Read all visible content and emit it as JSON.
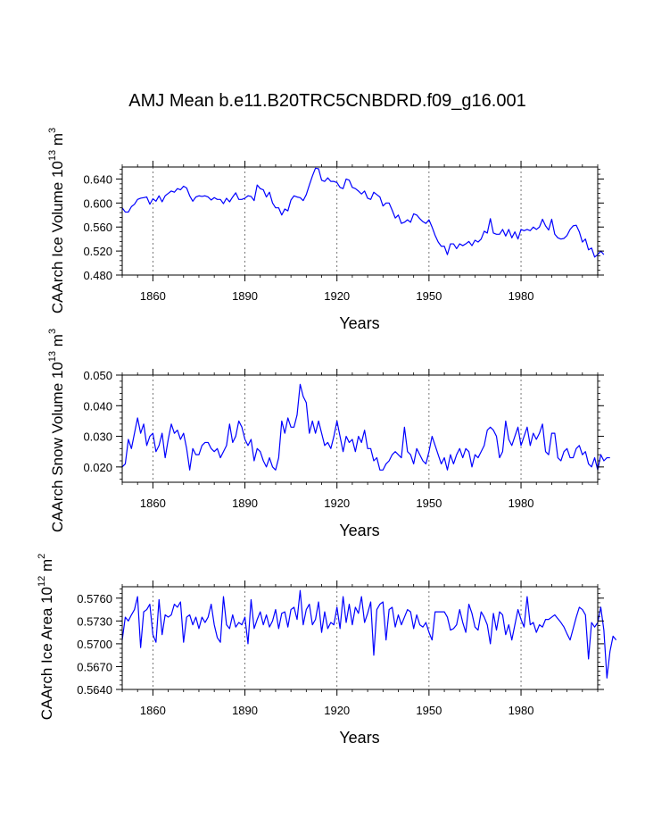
{
  "figure": {
    "title": "AMJ Mean b.e11.B20TRC5CNBDRD.f09_g16.001",
    "line_color": "#0000ff",
    "axis_color": "#000000",
    "grid_color": "#555555"
  },
  "chart_data": [
    {
      "type": "line",
      "name": "ice-volume",
      "title": "",
      "xlabel": "Years",
      "ylabel": {
        "prefix": "CAArch Ice Volume 10",
        "exp": "13",
        "mid": " m",
        "exp2": "3"
      },
      "xlim": [
        1850,
        2005
      ],
      "ylim": [
        0.48,
        0.66
      ],
      "xticks": [
        1860,
        1890,
        1920,
        1950,
        1980
      ],
      "xtick_labels": [
        "1860",
        "1890",
        "1920",
        "1950",
        "1980"
      ],
      "yticks": [
        0.48,
        0.52,
        0.56,
        0.6,
        0.64
      ],
      "ytick_labels": [
        "0.480",
        "0.520",
        "0.560",
        "0.600",
        "0.640"
      ],
      "x_start": 1850,
      "values": [
        0.592,
        0.585,
        0.585,
        0.594,
        0.598,
        0.606,
        0.608,
        0.609,
        0.61,
        0.598,
        0.607,
        0.603,
        0.612,
        0.602,
        0.612,
        0.616,
        0.62,
        0.618,
        0.624,
        0.622,
        0.628,
        0.625,
        0.612,
        0.603,
        0.61,
        0.612,
        0.611,
        0.612,
        0.61,
        0.605,
        0.609,
        0.606,
        0.606,
        0.599,
        0.608,
        0.602,
        0.61,
        0.617,
        0.606,
        0.606,
        0.608,
        0.612,
        0.611,
        0.604,
        0.63,
        0.624,
        0.622,
        0.61,
        0.618,
        0.6,
        0.592,
        0.592,
        0.58,
        0.59,
        0.587,
        0.605,
        0.612,
        0.61,
        0.609,
        0.604,
        0.614,
        0.63,
        0.645,
        0.658,
        0.657,
        0.638,
        0.636,
        0.642,
        0.636,
        0.636,
        0.634,
        0.626,
        0.624,
        0.64,
        0.638,
        0.626,
        0.624,
        0.62,
        0.615,
        0.62,
        0.608,
        0.606,
        0.618,
        0.614,
        0.61,
        0.595,
        0.6,
        0.6,
        0.588,
        0.575,
        0.58,
        0.566,
        0.568,
        0.572,
        0.568,
        0.582,
        0.58,
        0.574,
        0.569,
        0.566,
        0.572,
        0.56,
        0.546,
        0.535,
        0.528,
        0.528,
        0.514,
        0.532,
        0.532,
        0.524,
        0.532,
        0.529,
        0.532,
        0.536,
        0.529,
        0.538,
        0.535,
        0.54,
        0.553,
        0.55,
        0.574,
        0.55,
        0.548,
        0.548,
        0.556,
        0.545,
        0.556,
        0.542,
        0.552,
        0.54,
        0.556,
        0.554,
        0.556,
        0.554,
        0.56,
        0.556,
        0.56,
        0.573,
        0.562,
        0.555,
        0.573,
        0.548,
        0.542,
        0.54,
        0.541,
        0.546,
        0.556,
        0.562,
        0.563,
        0.552,
        0.535,
        0.54,
        0.522,
        0.525,
        0.51,
        0.514,
        0.52,
        0.514
      ]
    },
    {
      "type": "line",
      "name": "snow-volume",
      "title": "",
      "xlabel": "Years",
      "ylabel": {
        "prefix": "CAArch Snow Volume 10",
        "exp": "13",
        "mid": " m",
        "exp2": "3"
      },
      "xlim": [
        1850,
        2005
      ],
      "ylim": [
        0.015,
        0.05
      ],
      "xticks": [
        1860,
        1890,
        1920,
        1950,
        1980
      ],
      "xtick_labels": [
        "1860",
        "1890",
        "1920",
        "1950",
        "1980"
      ],
      "yticks": [
        0.02,
        0.03,
        0.04,
        0.05
      ],
      "ytick_labels": [
        "0.020",
        "0.030",
        "0.040",
        "0.050"
      ],
      "x_start": 1850,
      "values": [
        0.02,
        0.021,
        0.029,
        0.026,
        0.031,
        0.036,
        0.031,
        0.034,
        0.027,
        0.03,
        0.031,
        0.025,
        0.027,
        0.031,
        0.023,
        0.029,
        0.034,
        0.031,
        0.032,
        0.029,
        0.031,
        0.026,
        0.019,
        0.026,
        0.024,
        0.024,
        0.027,
        0.028,
        0.028,
        0.026,
        0.025,
        0.026,
        0.023,
        0.025,
        0.027,
        0.034,
        0.028,
        0.03,
        0.035,
        0.033,
        0.029,
        0.027,
        0.029,
        0.022,
        0.026,
        0.025,
        0.022,
        0.02,
        0.023,
        0.02,
        0.019,
        0.023,
        0.035,
        0.031,
        0.036,
        0.033,
        0.033,
        0.037,
        0.047,
        0.043,
        0.041,
        0.031,
        0.035,
        0.031,
        0.035,
        0.031,
        0.027,
        0.028,
        0.026,
        0.03,
        0.035,
        0.03,
        0.025,
        0.03,
        0.028,
        0.029,
        0.025,
        0.03,
        0.028,
        0.032,
        0.026,
        0.026,
        0.022,
        0.023,
        0.019,
        0.019,
        0.021,
        0.022,
        0.024,
        0.025,
        0.024,
        0.023,
        0.033,
        0.025,
        0.024,
        0.021,
        0.026,
        0.024,
        0.022,
        0.021,
        0.025,
        0.03,
        0.027,
        0.024,
        0.021,
        0.023,
        0.019,
        0.024,
        0.021,
        0.024,
        0.026,
        0.023,
        0.026,
        0.025,
        0.02,
        0.024,
        0.023,
        0.025,
        0.027,
        0.032,
        0.033,
        0.032,
        0.03,
        0.023,
        0.025,
        0.035,
        0.029,
        0.027,
        0.03,
        0.033,
        0.027,
        0.03,
        0.033,
        0.027,
        0.031,
        0.029,
        0.031,
        0.034,
        0.025,
        0.024,
        0.031,
        0.031,
        0.023,
        0.022,
        0.025,
        0.026,
        0.023,
        0.023,
        0.026,
        0.027,
        0.024,
        0.025,
        0.021,
        0.02,
        0.023,
        0.019,
        0.024,
        0.022,
        0.023,
        0.023
      ]
    },
    {
      "type": "line",
      "name": "ice-area",
      "title": "",
      "xlabel": "Years",
      "ylabel": {
        "prefix": "CAArch Ice Area 10",
        "exp": "12",
        "mid": " m",
        "exp2": "2"
      },
      "xlim": [
        1850,
        2005
      ],
      "ylim": [
        0.564,
        0.5775
      ],
      "xticks": [
        1860,
        1890,
        1920,
        1950,
        1980
      ],
      "xtick_labels": [
        "1860",
        "1890",
        "1920",
        "1950",
        "1980"
      ],
      "yticks": [
        0.564,
        0.567,
        0.57,
        0.573,
        0.576
      ],
      "ytick_labels": [
        "0.5640",
        "0.5670",
        "0.5700",
        "0.5730",
        "0.5760"
      ],
      "x_start": 1850,
      "values": [
        0.5705,
        0.5735,
        0.573,
        0.5738,
        0.5745,
        0.5762,
        0.5695,
        0.5742,
        0.5745,
        0.5752,
        0.5712,
        0.5702,
        0.5758,
        0.5712,
        0.5738,
        0.5735,
        0.5738,
        0.5752,
        0.5748,
        0.5755,
        0.5702,
        0.5735,
        0.5738,
        0.5725,
        0.5735,
        0.572,
        0.5735,
        0.5728,
        0.5735,
        0.5752,
        0.5725,
        0.5708,
        0.5702,
        0.5762,
        0.5725,
        0.572,
        0.5738,
        0.5722,
        0.5728,
        0.5725,
        0.5735,
        0.57,
        0.5758,
        0.572,
        0.5732,
        0.5742,
        0.5725,
        0.5738,
        0.5722,
        0.573,
        0.5745,
        0.572,
        0.574,
        0.5742,
        0.5722,
        0.5745,
        0.5748,
        0.5732,
        0.577,
        0.5725,
        0.5745,
        0.5752,
        0.5725,
        0.5732,
        0.5755,
        0.5715,
        0.5742,
        0.572,
        0.5728,
        0.5725,
        0.5748,
        0.572,
        0.5762,
        0.5728,
        0.5752,
        0.5725,
        0.5748,
        0.574,
        0.5762,
        0.5728,
        0.574,
        0.5755,
        0.5685,
        0.5745,
        0.5752,
        0.5755,
        0.5705,
        0.5745,
        0.5748,
        0.5722,
        0.5738,
        0.5725,
        0.5735,
        0.5745,
        0.5742,
        0.572,
        0.5738,
        0.5725,
        0.5722,
        0.5728,
        0.5715,
        0.5705,
        0.5742,
        0.5742,
        0.5742,
        0.5742,
        0.5735,
        0.5718,
        0.572,
        0.5725,
        0.5745,
        0.5728,
        0.5715,
        0.5752,
        0.574,
        0.5722,
        0.5718,
        0.5742,
        0.5735,
        0.5725,
        0.57,
        0.574,
        0.5718,
        0.5742,
        0.5738,
        0.5712,
        0.5725,
        0.5705,
        0.5725,
        0.5745,
        0.5732,
        0.5722,
        0.5762,
        0.5725,
        0.5728,
        0.5715,
        0.5725,
        0.5722,
        0.5732,
        0.5732,
        0.5735,
        0.5738,
        0.5733,
        0.5728,
        0.5722,
        0.5713,
        0.5705,
        0.572,
        0.5735,
        0.5748,
        0.5745,
        0.5738,
        0.568,
        0.5728,
        0.5722,
        0.5728,
        0.5748,
        0.5718,
        0.5655,
        0.569,
        0.571,
        0.5705
      ]
    }
  ]
}
